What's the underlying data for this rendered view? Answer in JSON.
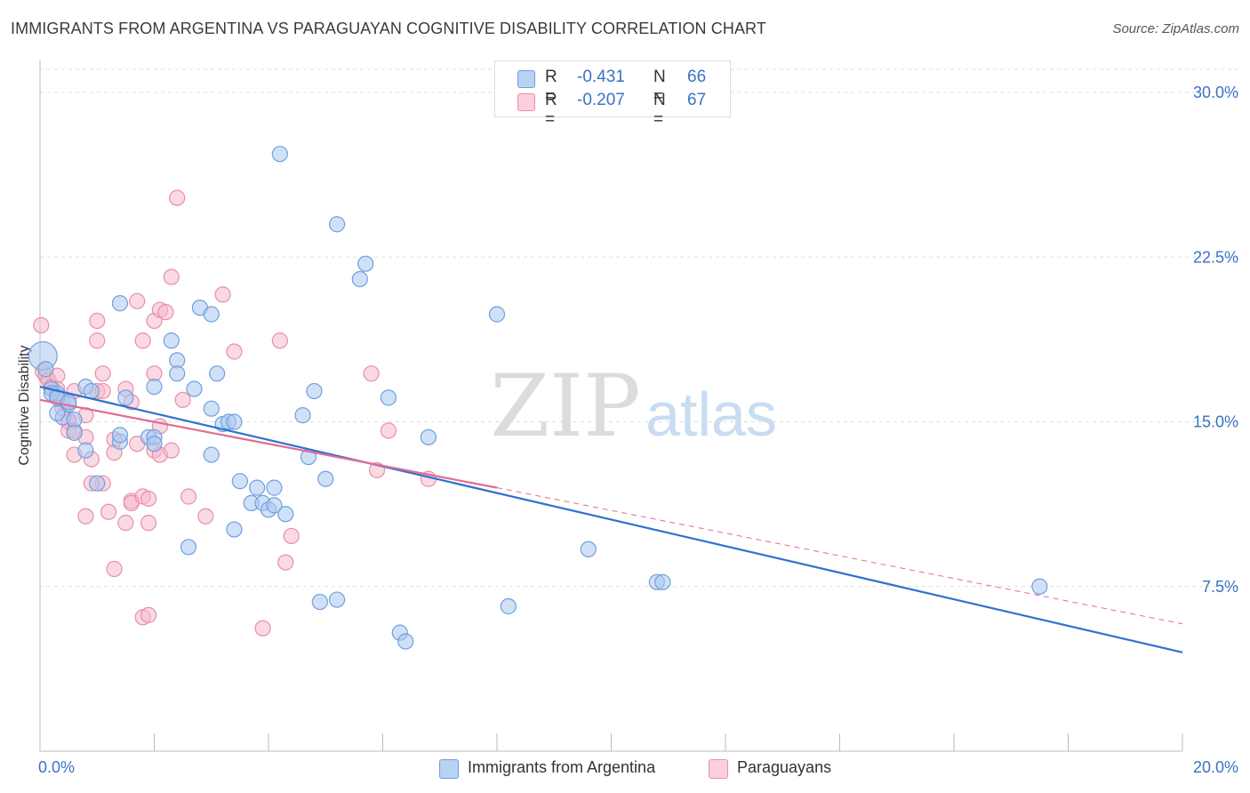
{
  "title": "IMMIGRANTS FROM ARGENTINA VS PARAGUAYAN COGNITIVE DISABILITY CORRELATION CHART",
  "source": "Source: ZipAtlas.com",
  "watermark": {
    "zip": "ZIP",
    "atlas": "atlas"
  },
  "colors": {
    "blue_fill": "#a9c8f0",
    "blue_stroke": "#6f9fdc",
    "blue_line": "#2f72d0",
    "pink_fill": "#f6b9cc",
    "pink_stroke": "#e88fab",
    "pink_line": "#e06b94",
    "tick_label": "#3a72c5",
    "grid": "#dddddd"
  },
  "legend_top": [
    {
      "r_label": "R =",
      "r_value": "-0.431",
      "n_label": "N =",
      "n_value": "66"
    },
    {
      "r_label": "R =",
      "r_value": "-0.207",
      "n_label": "N =",
      "n_value": "67"
    }
  ],
  "legend_bottom": [
    "Immigrants from Argentina",
    "Paraguayans"
  ],
  "chart_data": {
    "type": "scatter",
    "title": "IMMIGRANTS FROM ARGENTINA VS PARAGUAYAN COGNITIVE DISABILITY CORRELATION CHART",
    "xlabel": "",
    "ylabel": "Cognitive Disability",
    "xlim": [
      0,
      20
    ],
    "ylim": [
      0,
      31.5
    ],
    "x_tick_labels": [
      "0.0%",
      "20.0%"
    ],
    "y_ticks": [
      7.5,
      15.0,
      22.5,
      30.0
    ],
    "y_tick_labels": [
      "7.5%",
      "15.0%",
      "22.5%",
      "30.0%"
    ],
    "grid": "horizontal dashed",
    "legend": "top-center",
    "series": [
      {
        "name": "Immigrants from Argentina",
        "color": "#a9c8f0",
        "points": [
          [
            0.05,
            18.0
          ],
          [
            0.1,
            17.4
          ],
          [
            0.2,
            16.5
          ],
          [
            0.3,
            16.3
          ],
          [
            0.4,
            15.2
          ],
          [
            0.5,
            15.8
          ],
          [
            0.6,
            15.1
          ],
          [
            0.6,
            14.5
          ],
          [
            0.8,
            16.6
          ],
          [
            0.9,
            16.4
          ],
          [
            0.8,
            13.7
          ],
          [
            1.0,
            12.2
          ],
          [
            1.4,
            14.1
          ],
          [
            1.4,
            14.4
          ],
          [
            1.5,
            16.1
          ],
          [
            1.4,
            20.4
          ],
          [
            1.9,
            14.3
          ],
          [
            2.0,
            14.3
          ],
          [
            2.0,
            14.0
          ],
          [
            2.0,
            16.6
          ],
          [
            2.3,
            18.7
          ],
          [
            2.4,
            17.8
          ],
          [
            2.4,
            17.2
          ],
          [
            2.6,
            9.3
          ],
          [
            2.7,
            16.5
          ],
          [
            2.8,
            20.2
          ],
          [
            3.0,
            15.6
          ],
          [
            3.0,
            19.9
          ],
          [
            3.0,
            13.5
          ],
          [
            3.1,
            17.2
          ],
          [
            3.2,
            14.9
          ],
          [
            3.3,
            15.0
          ],
          [
            3.4,
            15.0
          ],
          [
            3.4,
            10.1
          ],
          [
            3.5,
            12.3
          ],
          [
            3.7,
            11.3
          ],
          [
            3.8,
            12.0
          ],
          [
            3.9,
            11.3
          ],
          [
            4.0,
            11.0
          ],
          [
            4.1,
            12.0
          ],
          [
            4.1,
            11.2
          ],
          [
            4.2,
            27.2
          ],
          [
            4.3,
            10.8
          ],
          [
            4.6,
            15.3
          ],
          [
            4.7,
            13.4
          ],
          [
            4.8,
            16.4
          ],
          [
            4.9,
            6.8
          ],
          [
            5.0,
            12.4
          ],
          [
            5.2,
            6.9
          ],
          [
            5.2,
            24.0
          ],
          [
            5.6,
            21.5
          ],
          [
            5.7,
            22.2
          ],
          [
            6.1,
            16.1
          ],
          [
            6.3,
            5.4
          ],
          [
            6.4,
            5.0
          ],
          [
            6.8,
            14.3
          ],
          [
            8.0,
            19.9
          ],
          [
            8.2,
            6.6
          ],
          [
            9.6,
            9.2
          ],
          [
            10.8,
            7.7
          ],
          [
            10.9,
            7.7
          ],
          [
            17.5,
            7.5
          ],
          [
            0.2,
            16.3
          ],
          [
            0.3,
            16.1
          ],
          [
            0.5,
            15.9
          ],
          [
            0.3,
            15.4
          ]
        ]
      },
      {
        "name": "Paraguayans",
        "color": "#f6b9cc",
        "points": [
          [
            0.02,
            19.4
          ],
          [
            0.05,
            17.3
          ],
          [
            0.1,
            17.1
          ],
          [
            0.15,
            16.9
          ],
          [
            0.2,
            16.6
          ],
          [
            0.3,
            17.1
          ],
          [
            0.3,
            16.5
          ],
          [
            0.4,
            15.9
          ],
          [
            0.4,
            15.6
          ],
          [
            0.5,
            15.1
          ],
          [
            0.5,
            15.0
          ],
          [
            0.5,
            14.6
          ],
          [
            0.6,
            14.6
          ],
          [
            0.6,
            13.5
          ],
          [
            0.8,
            14.3
          ],
          [
            0.8,
            10.7
          ],
          [
            0.9,
            13.3
          ],
          [
            1.0,
            16.4
          ],
          [
            1.0,
            18.7
          ],
          [
            1.0,
            19.6
          ],
          [
            1.1,
            17.2
          ],
          [
            1.1,
            16.4
          ],
          [
            1.1,
            12.2
          ],
          [
            1.2,
            10.9
          ],
          [
            1.3,
            14.2
          ],
          [
            1.3,
            13.6
          ],
          [
            1.3,
            8.3
          ],
          [
            1.5,
            16.5
          ],
          [
            1.6,
            15.9
          ],
          [
            1.5,
            10.4
          ],
          [
            1.6,
            11.4
          ],
          [
            1.6,
            11.3
          ],
          [
            1.7,
            14.0
          ],
          [
            1.7,
            20.5
          ],
          [
            1.8,
            18.7
          ],
          [
            1.8,
            11.6
          ],
          [
            1.8,
            6.1
          ],
          [
            1.9,
            6.2
          ],
          [
            1.9,
            10.4
          ],
          [
            1.9,
            11.5
          ],
          [
            2.0,
            13.7
          ],
          [
            2.0,
            17.2
          ],
          [
            2.0,
            19.6
          ],
          [
            2.1,
            20.1
          ],
          [
            2.1,
            14.8
          ],
          [
            2.1,
            13.5
          ],
          [
            2.2,
            20.0
          ],
          [
            2.3,
            21.6
          ],
          [
            2.3,
            13.7
          ],
          [
            2.4,
            25.2
          ],
          [
            2.5,
            16.0
          ],
          [
            2.6,
            11.6
          ],
          [
            2.9,
            10.7
          ],
          [
            3.2,
            20.8
          ],
          [
            3.4,
            18.2
          ],
          [
            3.9,
            5.6
          ],
          [
            4.2,
            18.7
          ],
          [
            4.3,
            8.6
          ],
          [
            4.4,
            9.8
          ],
          [
            5.8,
            17.2
          ],
          [
            5.9,
            12.8
          ],
          [
            6.1,
            14.6
          ],
          [
            6.8,
            12.4
          ],
          [
            0.3,
            16.2
          ],
          [
            0.6,
            16.4
          ],
          [
            0.8,
            15.3
          ],
          [
            0.9,
            12.2
          ]
        ]
      }
    ],
    "trendlines": [
      {
        "series": "Immigrants from Argentina",
        "x": [
          0,
          20
        ],
        "y": [
          16.6,
          4.5
        ],
        "style": "solid"
      },
      {
        "series": "Paraguayans",
        "x": [
          0,
          8
        ],
        "y": [
          16.0,
          12.0
        ],
        "style": "solid"
      },
      {
        "series": "Paraguayans",
        "x": [
          8,
          20
        ],
        "y": [
          12.0,
          5.8
        ],
        "style": "dashed"
      }
    ]
  }
}
